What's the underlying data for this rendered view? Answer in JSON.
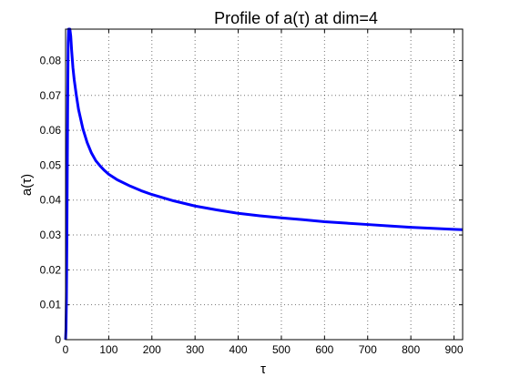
{
  "chart_data": {
    "type": "line",
    "title": "Profile of a(τ) at dim=4",
    "xlabel": "τ",
    "ylabel": "a(τ)",
    "xlim": [
      0,
      920
    ],
    "ylim": [
      0,
      0.089
    ],
    "grid": true,
    "x_ticks": [
      0,
      100,
      200,
      300,
      400,
      500,
      600,
      700,
      800,
      900
    ],
    "y_ticks": [
      0,
      0.01,
      0.02,
      0.03,
      0.04,
      0.05,
      0.06,
      0.07,
      0.08
    ],
    "series": [
      {
        "color": "#0000ff",
        "x": [
          0,
          1,
          2,
          3,
          4,
          5,
          6,
          7,
          8,
          9,
          10,
          12,
          14,
          17,
          20,
          25,
          30,
          40,
          50,
          60,
          70,
          80,
          90,
          100,
          120,
          150,
          175,
          200,
          250,
          300,
          350,
          400,
          450,
          500,
          550,
          600,
          650,
          700,
          750,
          800,
          850,
          900,
          920
        ],
        "y": [
          0,
          0.003,
          0.012,
          0.028,
          0.05,
          0.07,
          0.085,
          0.089,
          0.089,
          0.089,
          0.089,
          0.087,
          0.083,
          0.078,
          0.0745,
          0.07,
          0.066,
          0.0605,
          0.0565,
          0.0535,
          0.0513,
          0.0498,
          0.0485,
          0.0474,
          0.0458,
          0.044,
          0.0427,
          0.0416,
          0.0398,
          0.0383,
          0.0372,
          0.0362,
          0.0355,
          0.0349,
          0.0344,
          0.0338,
          0.0334,
          0.033,
          0.0326,
          0.0322,
          0.0319,
          0.0316,
          0.0315
        ]
      }
    ]
  }
}
